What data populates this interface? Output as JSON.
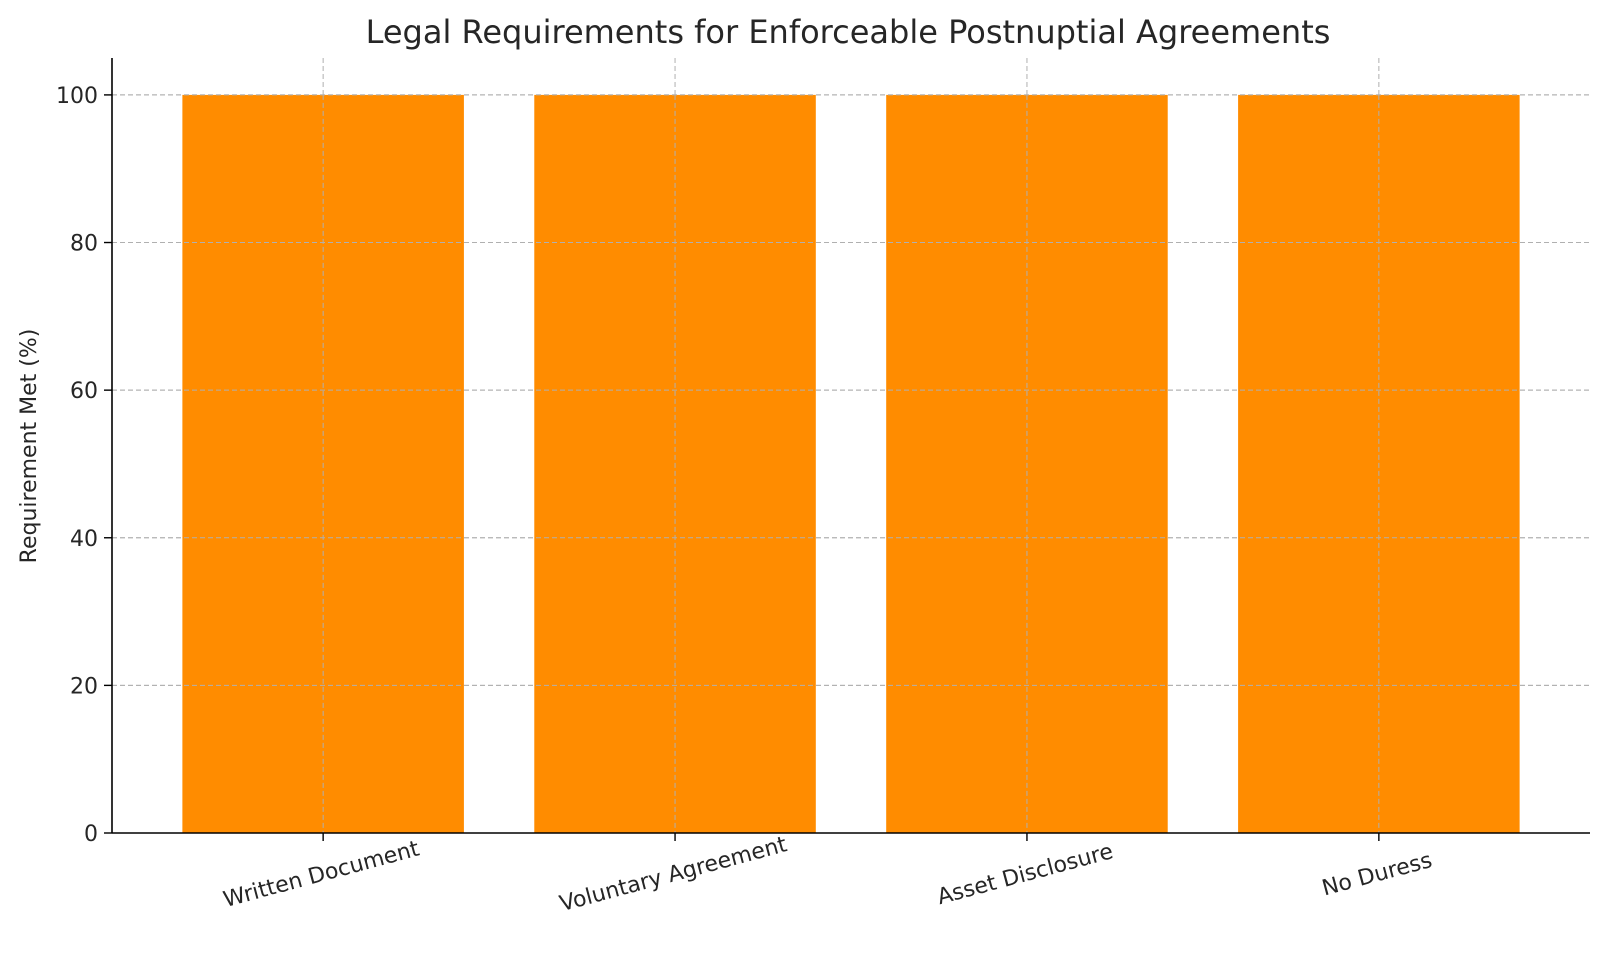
{
  "chart_data": {
    "type": "bar",
    "title": "Legal Requirements for Enforceable Postnuptial Agreements",
    "xlabel": "",
    "ylabel": "Requirement Met (%)",
    "categories": [
      "Written Document",
      "Voluntary Agreement",
      "Asset Disclosure",
      "No Duress"
    ],
    "values": [
      100,
      100,
      100,
      100
    ],
    "ylim": [
      0,
      105
    ],
    "yticks": [
      0,
      20,
      40,
      60,
      80,
      100
    ],
    "grid": true,
    "bar_color": "#ff8c00",
    "x_tick_rotation_deg": 15,
    "legend": "none"
  }
}
